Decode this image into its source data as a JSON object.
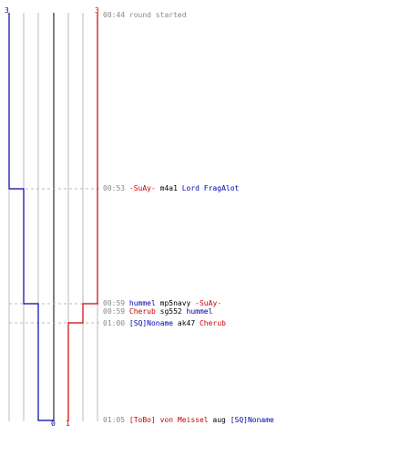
{
  "colors": {
    "team_a": "#0000aa",
    "team_b": "#cc0000",
    "neutral": "#000000",
    "time": "#888888",
    "grid": "#bbbbbb",
    "center": "#555555"
  },
  "header": {
    "score_a": "3",
    "score_b": "3"
  },
  "footer": {
    "score_a": "0",
    "score_b": "1"
  },
  "events": [
    {
      "time": "00:44",
      "parts": [
        {
          "t": "round started",
          "c": "time"
        }
      ],
      "dashed": false
    },
    {
      "time": "00:53",
      "parts": [
        {
          "t": "-SuAy-",
          "c": "team_b"
        },
        {
          "t": " m4a1 ",
          "c": "neutral"
        },
        {
          "t": "Lord FragAlot",
          "c": "team_a"
        }
      ],
      "dashed": true
    },
    {
      "time": "00:59",
      "parts": [
        {
          "t": "hummel",
          "c": "team_a"
        },
        {
          "t": " mp5navy ",
          "c": "neutral"
        },
        {
          "t": "-SuAy-",
          "c": "team_b"
        }
      ],
      "dashed": true
    },
    {
      "time": "00:59",
      "parts": [
        {
          "t": "Cherub",
          "c": "team_b"
        },
        {
          "t": " sg552 ",
          "c": "neutral"
        },
        {
          "t": "hummel",
          "c": "team_a"
        }
      ],
      "dashed": false
    },
    {
      "time": "01:00",
      "parts": [
        {
          "t": "[SQ]Noname",
          "c": "team_a"
        },
        {
          "t": " ak47 ",
          "c": "neutral"
        },
        {
          "t": "Cherub",
          "c": "team_b"
        }
      ],
      "dashed": true
    },
    {
      "time": "01:05",
      "parts": [
        {
          "t": "[ToBo] von Meissel",
          "c": "team_b"
        },
        {
          "t": " aug ",
          "c": "neutral"
        },
        {
          "t": "[SQ]Noname",
          "c": "team_a"
        }
      ],
      "dashed": false
    }
  ]
}
